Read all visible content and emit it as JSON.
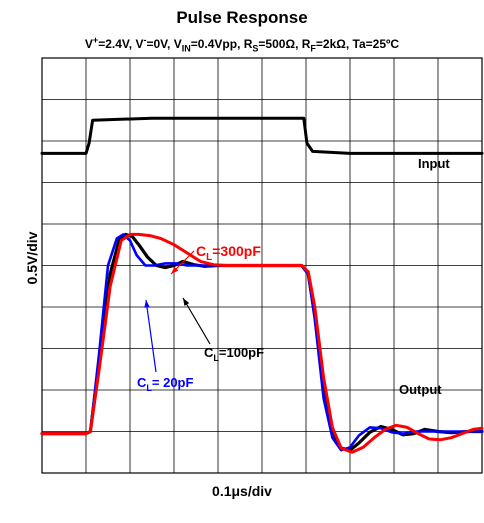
{
  "chart_data": {
    "type": "line",
    "title": "Pulse Response",
    "subtitle": {
      "prefix_v": "V",
      "vplus_sup": "+",
      "vplus_eq": "=2.4V, V",
      "vminus_sup": "-",
      "vminus_eq": "=0V, V",
      "vin_sub": "IN",
      "vin_eq": "=0.4Vpp, R",
      "rs_sub": "S",
      "rs_eq": "=500Ω, R",
      "rf_sub": "F",
      "rf_eq": "=2kΩ, Ta=25ºC"
    },
    "xlabel": "0.1μs/div",
    "ylabel": "0.5V/div",
    "grid": true,
    "x_divisions": 10,
    "y_divisions": 10,
    "xlim": [
      0,
      10
    ],
    "ylim": [
      0,
      10
    ],
    "trace_labels": {
      "input": "Input",
      "output": "Output",
      "cl_prefix": "C",
      "cl_sub": "L",
      "cl300": "=300pF",
      "cl100": "=100pF",
      "cl20": "= 20pF"
    },
    "series": [
      {
        "key": "input",
        "color": "#000000",
        "x": [
          0,
          1.0,
          1.07,
          1.15,
          2.5,
          4.0,
          5.5,
          5.95,
          6.02,
          6.15,
          7.0,
          8.5,
          10
        ],
        "y": [
          7.7,
          7.7,
          7.95,
          8.5,
          8.55,
          8.55,
          8.55,
          8.55,
          7.95,
          7.75,
          7.7,
          7.7,
          7.7
        ]
      },
      {
        "key": "cl300",
        "color": "#ff0000",
        "x": [
          0,
          1.0,
          1.1,
          1.3,
          1.55,
          1.8,
          2.0,
          2.2,
          2.45,
          2.7,
          3.0,
          3.3,
          3.6,
          3.9,
          4.2,
          4.5,
          4.9,
          5.3,
          5.9,
          6.05,
          6.2,
          6.4,
          6.6,
          6.8,
          7.05,
          7.3,
          7.55,
          7.8,
          8.05,
          8.3,
          8.55,
          8.8,
          9.05,
          9.3,
          9.55,
          9.8,
          10
        ],
        "y": [
          0.95,
          0.95,
          1.0,
          2.5,
          4.5,
          5.6,
          5.75,
          5.75,
          5.72,
          5.65,
          5.5,
          5.3,
          5.1,
          5.02,
          5.0,
          5.0,
          5.0,
          5.0,
          5.0,
          4.85,
          4.0,
          2.3,
          1.1,
          0.6,
          0.5,
          0.62,
          0.85,
          1.05,
          1.15,
          1.1,
          0.95,
          0.82,
          0.8,
          0.85,
          0.95,
          1.05,
          1.08
        ]
      },
      {
        "key": "cl100",
        "color": "#000000",
        "x": [
          0,
          1.0,
          1.1,
          1.3,
          1.55,
          1.75,
          1.9,
          2.05,
          2.2,
          2.4,
          2.6,
          2.8,
          3.0,
          3.2,
          3.45,
          3.7,
          4.0,
          4.4,
          4.9,
          5.4,
          5.9,
          6.05,
          6.2,
          6.4,
          6.6,
          6.8,
          7.0,
          7.2,
          7.45,
          7.7,
          7.95,
          8.2,
          8.45,
          8.7,
          9.0,
          9.3,
          9.7,
          10
        ],
        "y": [
          0.95,
          0.95,
          1.0,
          2.7,
          4.8,
          5.6,
          5.75,
          5.7,
          5.5,
          5.2,
          5.0,
          4.95,
          5.0,
          5.1,
          5.02,
          4.98,
          5.0,
          5.0,
          5.0,
          5.0,
          5.0,
          4.8,
          3.8,
          2.0,
          0.95,
          0.6,
          0.55,
          0.72,
          0.98,
          1.12,
          1.05,
          0.92,
          0.95,
          1.05,
          1.0,
          0.97,
          1.0,
          1.0
        ]
      },
      {
        "key": "cl20",
        "color": "#0000ff",
        "x": [
          0,
          1.0,
          1.1,
          1.3,
          1.5,
          1.7,
          1.85,
          2.0,
          2.15,
          2.35,
          2.55,
          2.8,
          3.05,
          3.3,
          3.6,
          4.0,
          4.5,
          5.0,
          5.5,
          5.9,
          6.05,
          6.2,
          6.4,
          6.6,
          6.8,
          7.0,
          7.2,
          7.45,
          7.7,
          7.95,
          8.2,
          8.5,
          8.8,
          9.2,
          9.6,
          10
        ],
        "y": [
          0.95,
          0.95,
          1.0,
          2.9,
          5.0,
          5.65,
          5.75,
          5.6,
          5.25,
          5.0,
          5.0,
          5.05,
          5.05,
          5.0,
          5.0,
          5.0,
          5.0,
          5.0,
          5.0,
          5.0,
          4.8,
          3.7,
          1.8,
          0.85,
          0.55,
          0.62,
          0.9,
          1.1,
          1.08,
          0.98,
          0.95,
          1.0,
          1.0,
          1.0,
          1.0,
          1.0
        ]
      }
    ]
  }
}
